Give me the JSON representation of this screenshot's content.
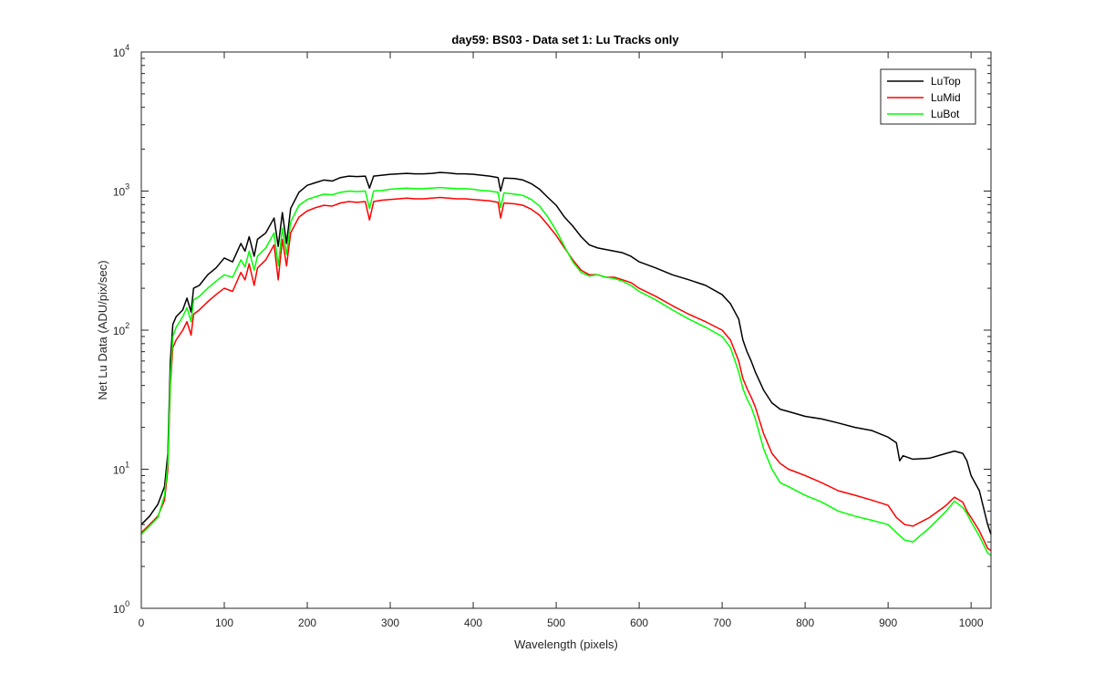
{
  "chart_data": {
    "type": "line",
    "title": "day59: BS03 - Data set 1: Lu Tracks only",
    "xlabel": "Wavelength (pixels)",
    "ylabel": "Net Lu Data (ADU/pix/sec)",
    "xlim": [
      0,
      1024
    ],
    "ylim": [
      1,
      10000
    ],
    "yscale": "log",
    "x_ticks": [
      0,
      100,
      200,
      300,
      400,
      500,
      600,
      700,
      800,
      900,
      1000
    ],
    "y_ticks": [
      {
        "value": 1,
        "base": "10",
        "exp": "0"
      },
      {
        "value": 10,
        "base": "10",
        "exp": "1"
      },
      {
        "value": 100,
        "base": "10",
        "exp": "2"
      },
      {
        "value": 1000,
        "base": "10",
        "exp": "3"
      },
      {
        "value": 10000,
        "base": "10",
        "exp": "4"
      }
    ],
    "grid": false,
    "legend_position": "top-right",
    "series": [
      {
        "name": "LuTop",
        "color": "#000000",
        "points": [
          [
            0,
            4
          ],
          [
            10,
            4.6
          ],
          [
            20,
            5.6
          ],
          [
            28,
            7.5
          ],
          [
            32,
            13
          ],
          [
            35,
            60
          ],
          [
            38,
            110
          ],
          [
            42,
            125
          ],
          [
            50,
            140
          ],
          [
            55,
            170
          ],
          [
            60,
            135
          ],
          [
            63,
            200
          ],
          [
            70,
            210
          ],
          [
            80,
            250
          ],
          [
            90,
            280
          ],
          [
            100,
            330
          ],
          [
            110,
            310
          ],
          [
            120,
            420
          ],
          [
            125,
            370
          ],
          [
            130,
            470
          ],
          [
            136,
            340
          ],
          [
            140,
            450
          ],
          [
            150,
            500
          ],
          [
            160,
            640
          ],
          [
            165,
            400
          ],
          [
            170,
            700
          ],
          [
            175,
            420
          ],
          [
            180,
            750
          ],
          [
            190,
            980
          ],
          [
            200,
            1100
          ],
          [
            210,
            1150
          ],
          [
            220,
            1200
          ],
          [
            230,
            1180
          ],
          [
            240,
            1250
          ],
          [
            250,
            1280
          ],
          [
            260,
            1270
          ],
          [
            270,
            1280
          ],
          [
            275,
            1050
          ],
          [
            280,
            1280
          ],
          [
            290,
            1300
          ],
          [
            300,
            1320
          ],
          [
            310,
            1330
          ],
          [
            320,
            1340
          ],
          [
            330,
            1330
          ],
          [
            340,
            1330
          ],
          [
            350,
            1340
          ],
          [
            360,
            1360
          ],
          [
            370,
            1350
          ],
          [
            380,
            1330
          ],
          [
            390,
            1330
          ],
          [
            400,
            1320
          ],
          [
            410,
            1300
          ],
          [
            420,
            1280
          ],
          [
            430,
            1250
          ],
          [
            433,
            1000
          ],
          [
            437,
            1240
          ],
          [
            450,
            1230
          ],
          [
            460,
            1200
          ],
          [
            470,
            1130
          ],
          [
            480,
            1030
          ],
          [
            490,
            900
          ],
          [
            500,
            790
          ],
          [
            510,
            650
          ],
          [
            520,
            560
          ],
          [
            530,
            470
          ],
          [
            540,
            410
          ],
          [
            550,
            390
          ],
          [
            560,
            380
          ],
          [
            570,
            370
          ],
          [
            580,
            360
          ],
          [
            590,
            340
          ],
          [
            600,
            310
          ],
          [
            620,
            280
          ],
          [
            640,
            250
          ],
          [
            660,
            230
          ],
          [
            680,
            210
          ],
          [
            700,
            180
          ],
          [
            710,
            155
          ],
          [
            720,
            120
          ],
          [
            725,
            85
          ],
          [
            730,
            70
          ],
          [
            735,
            60
          ],
          [
            740,
            50
          ],
          [
            750,
            37
          ],
          [
            760,
            30
          ],
          [
            770,
            27
          ],
          [
            780,
            26
          ],
          [
            800,
            24
          ],
          [
            820,
            23
          ],
          [
            840,
            21.5
          ],
          [
            860,
            20
          ],
          [
            880,
            19
          ],
          [
            900,
            17
          ],
          [
            910,
            15.5
          ],
          [
            914,
            11.5
          ],
          [
            918,
            12.5
          ],
          [
            930,
            11.8
          ],
          [
            950,
            12
          ],
          [
            970,
            13
          ],
          [
            980,
            13.5
          ],
          [
            990,
            13
          ],
          [
            995,
            11.5
          ],
          [
            1000,
            9
          ],
          [
            1010,
            7
          ],
          [
            1020,
            4
          ],
          [
            1024,
            3.4
          ]
        ]
      },
      {
        "name": "LuMid",
        "color": "#ff0000",
        "points": [
          [
            0,
            3.5
          ],
          [
            10,
            4
          ],
          [
            20,
            4.6
          ],
          [
            28,
            6
          ],
          [
            32,
            10
          ],
          [
            35,
            40
          ],
          [
            38,
            75
          ],
          [
            42,
            85
          ],
          [
            50,
            100
          ],
          [
            55,
            115
          ],
          [
            60,
            92
          ],
          [
            63,
            130
          ],
          [
            70,
            140
          ],
          [
            80,
            160
          ],
          [
            90,
            180
          ],
          [
            100,
            200
          ],
          [
            110,
            190
          ],
          [
            120,
            260
          ],
          [
            125,
            230
          ],
          [
            130,
            300
          ],
          [
            136,
            210
          ],
          [
            140,
            280
          ],
          [
            150,
            320
          ],
          [
            160,
            410
          ],
          [
            165,
            230
          ],
          [
            170,
            450
          ],
          [
            175,
            290
          ],
          [
            180,
            500
          ],
          [
            190,
            650
          ],
          [
            200,
            720
          ],
          [
            210,
            760
          ],
          [
            220,
            790
          ],
          [
            230,
            780
          ],
          [
            240,
            820
          ],
          [
            250,
            840
          ],
          [
            260,
            830
          ],
          [
            270,
            840
          ],
          [
            275,
            620
          ],
          [
            280,
            840
          ],
          [
            290,
            860
          ],
          [
            300,
            870
          ],
          [
            310,
            880
          ],
          [
            320,
            890
          ],
          [
            330,
            880
          ],
          [
            340,
            880
          ],
          [
            350,
            890
          ],
          [
            360,
            900
          ],
          [
            370,
            890
          ],
          [
            380,
            880
          ],
          [
            390,
            880
          ],
          [
            400,
            870
          ],
          [
            410,
            860
          ],
          [
            420,
            850
          ],
          [
            430,
            830
          ],
          [
            433,
            640
          ],
          [
            437,
            820
          ],
          [
            450,
            810
          ],
          [
            460,
            790
          ],
          [
            470,
            740
          ],
          [
            480,
            670
          ],
          [
            490,
            570
          ],
          [
            500,
            480
          ],
          [
            510,
            390
          ],
          [
            520,
            320
          ],
          [
            530,
            270
          ],
          [
            540,
            250
          ],
          [
            550,
            250
          ],
          [
            560,
            240
          ],
          [
            570,
            240
          ],
          [
            580,
            230
          ],
          [
            590,
            220
          ],
          [
            600,
            200
          ],
          [
            620,
            175
          ],
          [
            640,
            150
          ],
          [
            660,
            130
          ],
          [
            680,
            115
          ],
          [
            700,
            100
          ],
          [
            710,
            85
          ],
          [
            720,
            60
          ],
          [
            725,
            45
          ],
          [
            730,
            38
          ],
          [
            735,
            33
          ],
          [
            740,
            28
          ],
          [
            750,
            18
          ],
          [
            760,
            13
          ],
          [
            770,
            11
          ],
          [
            780,
            10
          ],
          [
            800,
            9
          ],
          [
            820,
            8
          ],
          [
            840,
            7
          ],
          [
            860,
            6.5
          ],
          [
            880,
            6
          ],
          [
            900,
            5.5
          ],
          [
            910,
            4.5
          ],
          [
            920,
            4
          ],
          [
            930,
            3.9
          ],
          [
            950,
            4.5
          ],
          [
            970,
            5.5
          ],
          [
            980,
            6.3
          ],
          [
            990,
            5.8
          ],
          [
            995,
            5
          ],
          [
            1000,
            4.5
          ],
          [
            1010,
            3.6
          ],
          [
            1020,
            2.7
          ],
          [
            1024,
            2.6
          ]
        ]
      },
      {
        "name": "LuBot",
        "color": "#00ff00",
        "points": [
          [
            0,
            3.4
          ],
          [
            10,
            3.9
          ],
          [
            20,
            4.5
          ],
          [
            28,
            6.5
          ],
          [
            32,
            11
          ],
          [
            35,
            45
          ],
          [
            38,
            90
          ],
          [
            42,
            105
          ],
          [
            50,
            125
          ],
          [
            55,
            145
          ],
          [
            60,
            115
          ],
          [
            63,
            165
          ],
          [
            70,
            175
          ],
          [
            80,
            200
          ],
          [
            90,
            225
          ],
          [
            100,
            250
          ],
          [
            110,
            240
          ],
          [
            120,
            320
          ],
          [
            125,
            285
          ],
          [
            130,
            370
          ],
          [
            136,
            270
          ],
          [
            140,
            340
          ],
          [
            150,
            390
          ],
          [
            160,
            500
          ],
          [
            165,
            290
          ],
          [
            170,
            540
          ],
          [
            175,
            350
          ],
          [
            180,
            600
          ],
          [
            190,
            790
          ],
          [
            200,
            870
          ],
          [
            210,
            910
          ],
          [
            220,
            950
          ],
          [
            230,
            940
          ],
          [
            240,
            980
          ],
          [
            250,
            1000
          ],
          [
            260,
            990
          ],
          [
            270,
            1000
          ],
          [
            275,
            750
          ],
          [
            280,
            1000
          ],
          [
            290,
            1010
          ],
          [
            300,
            1030
          ],
          [
            310,
            1040
          ],
          [
            320,
            1050
          ],
          [
            330,
            1040
          ],
          [
            340,
            1040
          ],
          [
            350,
            1050
          ],
          [
            360,
            1060
          ],
          [
            370,
            1050
          ],
          [
            380,
            1040
          ],
          [
            390,
            1040
          ],
          [
            400,
            1030
          ],
          [
            410,
            1010
          ],
          [
            420,
            1000
          ],
          [
            430,
            980
          ],
          [
            433,
            760
          ],
          [
            437,
            970
          ],
          [
            450,
            950
          ],
          [
            460,
            930
          ],
          [
            470,
            870
          ],
          [
            480,
            780
          ],
          [
            490,
            650
          ],
          [
            500,
            520
          ],
          [
            510,
            400
          ],
          [
            520,
            310
          ],
          [
            530,
            260
          ],
          [
            540,
            245
          ],
          [
            550,
            250
          ],
          [
            560,
            240
          ],
          [
            570,
            235
          ],
          [
            580,
            225
          ],
          [
            590,
            210
          ],
          [
            600,
            190
          ],
          [
            620,
            165
          ],
          [
            640,
            140
          ],
          [
            660,
            120
          ],
          [
            680,
            105
          ],
          [
            700,
            90
          ],
          [
            710,
            75
          ],
          [
            720,
            50
          ],
          [
            725,
            38
          ],
          [
            730,
            32
          ],
          [
            735,
            28
          ],
          [
            740,
            23
          ],
          [
            750,
            14
          ],
          [
            760,
            10
          ],
          [
            770,
            8
          ],
          [
            780,
            7.5
          ],
          [
            800,
            6.5
          ],
          [
            820,
            5.8
          ],
          [
            840,
            5
          ],
          [
            860,
            4.6
          ],
          [
            880,
            4.3
          ],
          [
            900,
            4
          ],
          [
            910,
            3.5
          ],
          [
            920,
            3.1
          ],
          [
            930,
            3
          ],
          [
            950,
            3.8
          ],
          [
            970,
            5
          ],
          [
            980,
            5.9
          ],
          [
            990,
            5.3
          ],
          [
            995,
            4.8
          ],
          [
            1000,
            4.2
          ],
          [
            1010,
            3.3
          ],
          [
            1020,
            2.5
          ],
          [
            1024,
            2.4
          ]
        ]
      }
    ]
  }
}
